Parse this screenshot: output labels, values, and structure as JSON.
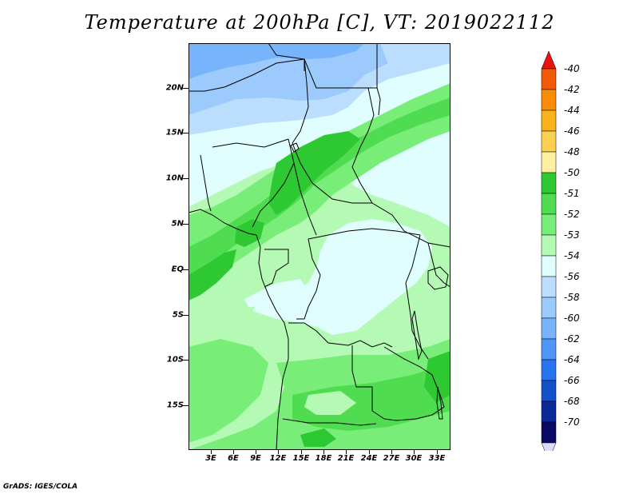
{
  "title": "Temperature at 200hPa [C], VT: 2019022112",
  "footer": "GrADS: IGES/COLA",
  "lat_labels": [
    "20N",
    "15N",
    "10N",
    "5N",
    "EQ",
    "5S",
    "10S",
    "15S"
  ],
  "lon_labels": [
    "3E",
    "6E",
    "9E",
    "12E",
    "15E",
    "18E",
    "21E",
    "24E",
    "27E",
    "30E",
    "33E"
  ],
  "colorbar": {
    "labels": [
      "-40",
      "-42",
      "-44",
      "-46",
      "-48",
      "-50",
      "-51",
      "-52",
      "-53",
      "-54",
      "-56",
      "-58",
      "-60",
      "-62",
      "-64",
      "-66",
      "-68",
      "-70"
    ],
    "colors": [
      "#e8140c",
      "#f05a08",
      "#f88c08",
      "#f8b21c",
      "#fcd050",
      "#fef0a0",
      "#2ec832",
      "#50dc50",
      "#78ee78",
      "#b4fab4",
      "#e0fefe",
      "#bcdefe",
      "#9ccafc",
      "#78b4fc",
      "#5096f8",
      "#2874f0",
      "#1450c8",
      "#0a2896",
      "#0a0a64"
    ],
    "under_color": "#dcdcfa"
  },
  "map_colors": {
    "c_54": "#b4fab4",
    "c_56": "#e0fefe",
    "c_53": "#78ee78",
    "c_52": "#50dc50",
    "c_51": "#2ec832",
    "c_58": "#bcdefe",
    "c_60": "#9ccafc",
    "c_62": "#78b4fc"
  }
}
